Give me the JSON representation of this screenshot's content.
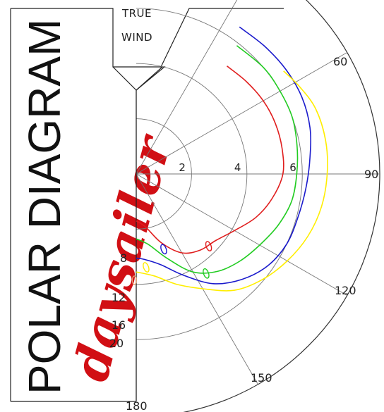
{
  "chart_data": {
    "type": "line",
    "polar": true,
    "title": "POLAR DIAGRAM",
    "brand": "daysailer",
    "wind_label": [
      "TRUE",
      "WIND"
    ],
    "radial_ticks": [
      2,
      4,
      6
    ],
    "angle_ticks": [
      60,
      90,
      120,
      150,
      180
    ],
    "rmax": 8.8,
    "series": [
      {
        "name": "8",
        "color": "#e01e1e",
        "points": [
          [
            40,
            5.1
          ],
          [
            50,
            5.2
          ],
          [
            60,
            5.3
          ],
          [
            70,
            5.35
          ],
          [
            80,
            5.35
          ],
          [
            90,
            5.3
          ],
          [
            100,
            5.0
          ],
          [
            110,
            4.6
          ],
          [
            120,
            4.1
          ],
          [
            130,
            3.75
          ],
          [
            140,
            3.6
          ],
          [
            150,
            3.3
          ],
          [
            160,
            2.65
          ],
          [
            170,
            1.95
          ],
          [
            180,
            1.7
          ]
        ],
        "marker": [
          135,
          3.7
        ]
      },
      {
        "name": "12",
        "color": "#22cc22",
        "points": [
          [
            38,
            5.9
          ],
          [
            50,
            6.0
          ],
          [
            60,
            6.0
          ],
          [
            70,
            6.0
          ],
          [
            80,
            5.9
          ],
          [
            90,
            5.8
          ],
          [
            100,
            5.7
          ],
          [
            110,
            5.45
          ],
          [
            120,
            5.15
          ],
          [
            130,
            4.9
          ],
          [
            140,
            4.6
          ],
          [
            150,
            4.1
          ],
          [
            160,
            3.25
          ],
          [
            170,
            2.6
          ],
          [
            180,
            2.35
          ]
        ],
        "marker": [
          145,
          4.4
        ]
      },
      {
        "name": "16",
        "color": "#1a1acc",
        "points": [
          [
            35,
            6.5
          ],
          [
            45,
            6.55
          ],
          [
            55,
            6.6
          ],
          [
            65,
            6.6
          ],
          [
            75,
            6.5
          ],
          [
            85,
            6.3
          ],
          [
            95,
            6.15
          ],
          [
            105,
            6.05
          ],
          [
            115,
            6.0
          ],
          [
            125,
            5.8
          ],
          [
            135,
            5.4
          ],
          [
            145,
            4.85
          ],
          [
            155,
            4.05
          ],
          [
            165,
            3.4
          ],
          [
            175,
            3.1
          ],
          [
            180,
            3.05
          ]
        ],
        "marker": [
          160,
          2.9
        ]
      },
      {
        "name": "20",
        "color": "#ffee00",
        "points": [
          [
            55,
            6.5
          ],
          [
            62,
            6.7
          ],
          [
            70,
            6.9
          ],
          [
            80,
            6.95
          ],
          [
            90,
            6.9
          ],
          [
            100,
            6.8
          ],
          [
            110,
            6.6
          ],
          [
            120,
            6.3
          ],
          [
            130,
            5.95
          ],
          [
            140,
            5.5
          ],
          [
            150,
            4.8
          ],
          [
            160,
            4.25
          ],
          [
            170,
            3.75
          ],
          [
            180,
            3.55
          ]
        ],
        "marker": [
          174,
          3.4
        ]
      }
    ],
    "extra_marker": {
      "color": "#e8a070",
      "at": [
        181,
        3.85
      ]
    }
  }
}
